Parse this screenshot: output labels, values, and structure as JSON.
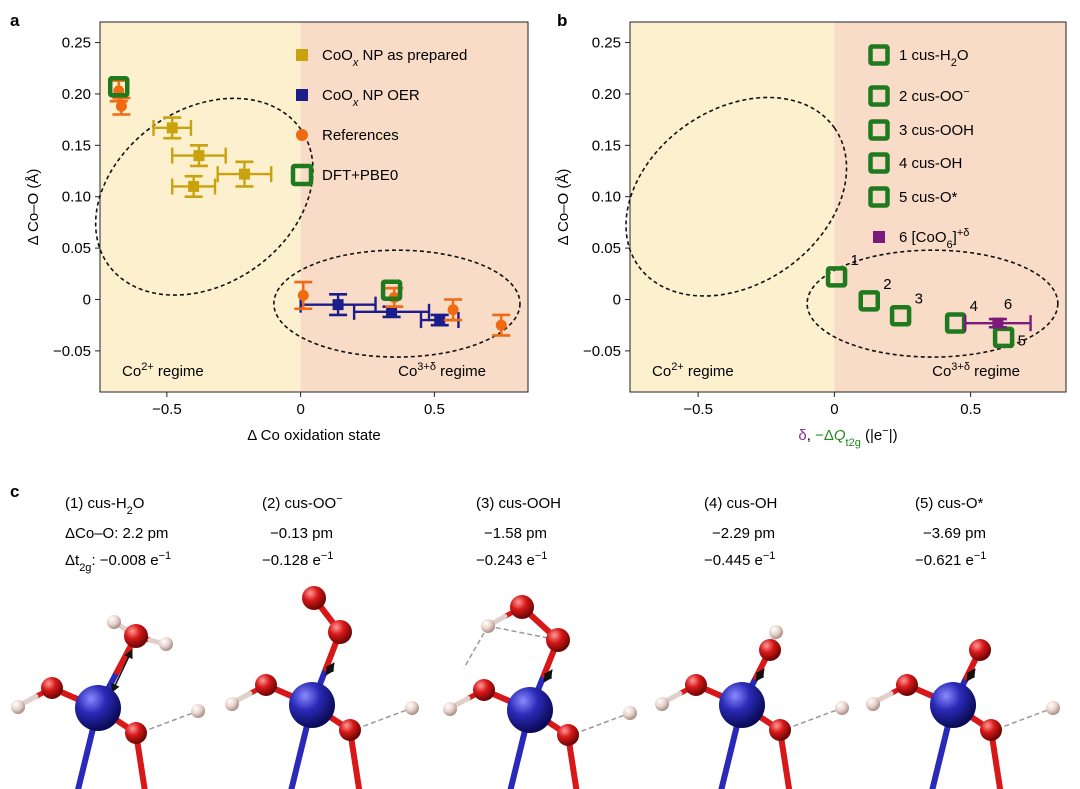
{
  "colors": {
    "co2_bg": "#fdf0cf",
    "co3_bg": "#f9dcc8",
    "gold": "#c9a20f",
    "navy": "#1a1d8a",
    "orange": "#ef6a10",
    "green": "#1f7a1f",
    "purple": "#7a1a7a",
    "axis_green": "#1f8a1f",
    "axis_purple": "#8a2a8a",
    "co_atom": "#2a2ab8",
    "o_atom": "#d81818",
    "h_atom": "#e8d2cc"
  },
  "chart_data": [
    {
      "panel": "a",
      "type": "scatter",
      "xlabel": "Δ Co oxidation state",
      "ylabel": "Δ Co–O (Å)",
      "xlim": [
        -0.75,
        0.85
      ],
      "ylim": [
        -0.09,
        0.27
      ],
      "xticks": [
        {
          "v": -0.5,
          "label": "−0.5"
        },
        {
          "v": 0,
          "label": "0"
        },
        {
          "v": 0.5,
          "label": "0.5"
        }
      ],
      "yticks": [
        {
          "v": 0.25,
          "label": "0.25"
        },
        {
          "v": 0.2,
          "label": "0.20"
        },
        {
          "v": 0.15,
          "label": "0.15"
        },
        {
          "v": 0.1,
          "label": "0.10"
        },
        {
          "v": 0.05,
          "label": "0.05"
        },
        {
          "v": 0,
          "label": "0"
        },
        {
          "v": -0.05,
          "label": "−0.05"
        }
      ],
      "regime_split": 0,
      "regime_labels": {
        "left": "Co",
        "left_sup": "2+",
        "left_suffix": " regime",
        "right": "Co",
        "right_sup": "3+δ",
        "right_suffix": " regime"
      },
      "legend": [
        {
          "name": "CoOx NP as prepared",
          "text_pre": "CoO",
          "text_sub": "x",
          "text_post": " NP as prepared",
          "marker": "square",
          "color": "gold"
        },
        {
          "name": "CoOx NP OER",
          "text_pre": "CoO",
          "text_sub": "x",
          "text_post": " NP OER",
          "marker": "square",
          "color": "navy"
        },
        {
          "name": "References",
          "text_pre": "References",
          "text_sub": "",
          "text_post": "",
          "marker": "circle",
          "color": "orange"
        },
        {
          "name": "DFT+PBE0",
          "text_pre": "DFT+PBE0",
          "text_sub": "",
          "text_post": "",
          "marker": "open-square",
          "color": "green"
        }
      ],
      "series": [
        {
          "name": "CoOx NP as prepared",
          "color": "gold",
          "marker": "square",
          "points": [
            {
              "x": -0.48,
              "y": 0.167,
              "xerr": 0.07,
              "yerr": 0.01
            },
            {
              "x": -0.38,
              "y": 0.14,
              "xerr": 0.1,
              "yerr": 0.01
            },
            {
              "x": -0.4,
              "y": 0.11,
              "xerr": 0.08,
              "yerr": 0.01
            },
            {
              "x": -0.21,
              "y": 0.122,
              "xerr": 0.1,
              "yerr": 0.012
            }
          ]
        },
        {
          "name": "CoOx NP OER",
          "color": "navy",
          "marker": "square",
          "points": [
            {
              "x": 0.14,
              "y": -0.005,
              "xerr": 0.14,
              "yerr": 0.01
            },
            {
              "x": 0.34,
              "y": -0.012,
              "xerr": 0.14,
              "yerr": 0.005
            },
            {
              "x": 0.52,
              "y": -0.02,
              "xerr": 0.07,
              "yerr": 0.005
            }
          ]
        },
        {
          "name": "References",
          "color": "orange",
          "marker": "circle",
          "points": [
            {
              "x": -0.68,
              "y": 0.203,
              "xerr": 0,
              "yerr": 0.01
            },
            {
              "x": -0.67,
              "y": 0.188,
              "xerr": 0,
              "yerr": 0.008
            },
            {
              "x": 0.01,
              "y": 0.004,
              "xerr": 0,
              "yerr": 0.013
            },
            {
              "x": 0.35,
              "y": 0.002,
              "xerr": 0,
              "yerr": 0.009
            },
            {
              "x": 0.57,
              "y": -0.01,
              "xerr": 0,
              "yerr": 0.01
            },
            {
              "x": 0.75,
              "y": -0.025,
              "xerr": 0,
              "yerr": 0.01
            }
          ]
        },
        {
          "name": "DFT+PBE0",
          "color": "green",
          "marker": "open-square",
          "points": [
            {
              "x": -0.68,
              "y": 0.207
            },
            {
              "x": 0.34,
              "y": 0.009
            }
          ]
        }
      ],
      "ellipses": [
        {
          "cx": -0.36,
          "cy": 0.1,
          "rx": 0.44,
          "ry": 0.085,
          "angle_deg": -35
        },
        {
          "cx": 0.36,
          "cy": -0.004,
          "rx": 0.46,
          "ry": 0.052,
          "angle_deg": 0
        }
      ]
    },
    {
      "panel": "b",
      "type": "scatter",
      "xlabel": "δ, −ΔQ_t2g (|e⁻|)",
      "xlabel_parts": {
        "delta": "δ",
        "sep": ", ",
        "minus": "−Δ",
        "q": "Q",
        "q_sub": "t2g",
        "unit": " (|e",
        "unit_sup": "−",
        "unit_end": "|)"
      },
      "ylabel": "Δ Co–O (Å)",
      "xlim": [
        -0.75,
        0.85
      ],
      "ylim": [
        -0.09,
        0.27
      ],
      "xticks": [
        {
          "v": -0.5,
          "label": "−0.5"
        },
        {
          "v": 0,
          "label": "0"
        },
        {
          "v": 0.5,
          "label": "0.5"
        }
      ],
      "yticks": [
        {
          "v": 0.25,
          "label": "0.25"
        },
        {
          "v": 0.2,
          "label": "0.20"
        },
        {
          "v": 0.15,
          "label": "0.15"
        },
        {
          "v": 0.1,
          "label": "0.10"
        },
        {
          "v": 0.05,
          "label": "0.05"
        },
        {
          "v": 0,
          "label": "0"
        },
        {
          "v": -0.05,
          "label": "−0.05"
        }
      ],
      "regime_split": 0,
      "regime_labels": {
        "left": "Co",
        "left_sup": "2+",
        "left_suffix": " regime",
        "right": "Co",
        "right_sup": "3+δ",
        "right_suffix": " regime"
      },
      "legend": [
        {
          "name": "1 cus-H2O",
          "text_pre": "1 cus-H",
          "text_sub": "2",
          "text_post": "O",
          "text_sup": "",
          "marker": "open-square",
          "color": "green"
        },
        {
          "name": "2 cus-OO-",
          "text_pre": "2 cus-OO",
          "text_sub": "",
          "text_post": "",
          "text_sup": "−",
          "marker": "open-square",
          "color": "green"
        },
        {
          "name": "3 cus-OOH",
          "text_pre": "3 cus-OOH",
          "text_sub": "",
          "text_post": "",
          "text_sup": "",
          "marker": "open-square",
          "color": "green"
        },
        {
          "name": "4 cus-OH",
          "text_pre": "4 cus-OH",
          "text_sub": "",
          "text_post": "",
          "text_sup": "",
          "marker": "open-square",
          "color": "green"
        },
        {
          "name": "5 cus-O*",
          "text_pre": "5 cus-O*",
          "text_sub": "",
          "text_post": "",
          "text_sup": "",
          "marker": "open-square",
          "color": "green"
        },
        {
          "name": "6 [CoO6]+δ",
          "text_pre": "6 [CoO",
          "text_sub": "6",
          "text_post": "]",
          "text_sup": "+δ",
          "marker": "square",
          "color": "purple"
        }
      ],
      "series": [
        {
          "name": "DFT cus states",
          "color": "green",
          "marker": "open-square",
          "points": [
            {
              "x": 0.008,
              "y": 0.022,
              "label": "1"
            },
            {
              "x": 0.128,
              "y": -0.0013,
              "label": "2"
            },
            {
              "x": 0.243,
              "y": -0.0158,
              "label": "3"
            },
            {
              "x": 0.445,
              "y": -0.0229,
              "label": "4"
            },
            {
              "x": 0.621,
              "y": -0.0369,
              "label": "5"
            }
          ]
        },
        {
          "name": "6 [CoO6]+δ",
          "color": "purple",
          "marker": "square",
          "points": [
            {
              "x": 0.6,
              "y": -0.023,
              "xerr": 0.12,
              "yerr": 0.004,
              "label": "6"
            }
          ]
        }
      ],
      "ellipses": [
        {
          "cx": -0.36,
          "cy": 0.1,
          "rx": 0.44,
          "ry": 0.085,
          "angle_deg": -35
        },
        {
          "cx": 0.36,
          "cy": -0.004,
          "rx": 0.46,
          "ry": 0.052,
          "angle_deg": 0
        }
      ]
    }
  ],
  "panel_labels": {
    "a": "a",
    "b": "b",
    "c": "c"
  },
  "structures": [
    {
      "title_pre": "(1) cus-H",
      "title_sub": "2",
      "title_post": "O",
      "title_sup": "",
      "line1_pre": "ΔCo–O: ",
      "line1_val": "2.2 pm",
      "line2_pre": "Δt",
      "line2_sub": "2g",
      "line2_mid": ": ",
      "line2_val": "−0.008 e",
      "line2_sup": "−1",
      "molecule": "h2o"
    },
    {
      "title_pre": "(2) cus-OO",
      "title_sub": "",
      "title_post": "",
      "title_sup": "−",
      "line1_pre": "",
      "line1_val": "−0.13 pm",
      "line2_pre": "",
      "line2_sub": "",
      "line2_mid": "",
      "line2_val": "−0.128 e",
      "line2_sup": "−1",
      "molecule": "oo"
    },
    {
      "title_pre": "(3) cus-OOH",
      "title_sub": "",
      "title_post": "",
      "title_sup": "",
      "line1_pre": "",
      "line1_val": "−1.58 pm",
      "line2_pre": "",
      "line2_sub": "",
      "line2_mid": "",
      "line2_val": "−0.243 e",
      "line2_sup": "−1",
      "molecule": "ooh"
    },
    {
      "title_pre": "(4) cus-OH",
      "title_sub": "",
      "title_post": "",
      "title_sup": "",
      "line1_pre": "",
      "line1_val": "−2.29 pm",
      "line2_pre": "",
      "line2_sub": "",
      "line2_mid": "",
      "line2_val": "−0.445 e",
      "line2_sup": "−1",
      "molecule": "oh"
    },
    {
      "title_pre": "(5) cus-O*",
      "title_sub": "",
      "title_post": "",
      "title_sup": "",
      "line1_pre": "",
      "line1_val": "−3.69 pm",
      "line2_pre": "",
      "line2_sub": "",
      "line2_mid": "",
      "line2_val": "−0.621 e",
      "line2_sup": "−1",
      "molecule": "o"
    }
  ]
}
